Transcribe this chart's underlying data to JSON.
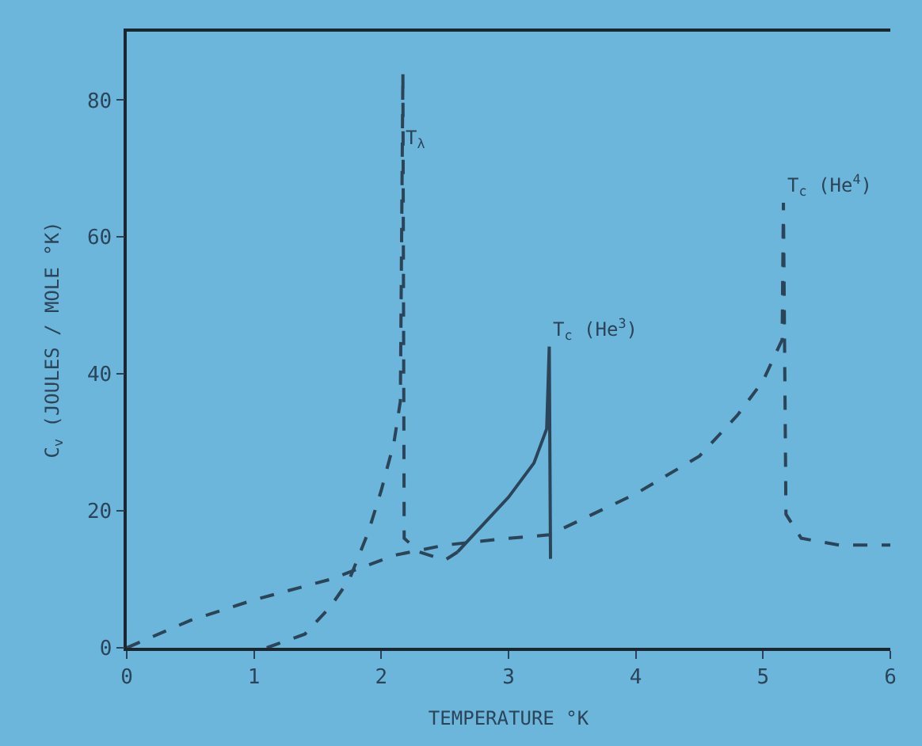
{
  "chart_data": {
    "type": "line",
    "xlabel": "TEMPERATURE °K",
    "ylabel": "C$_{v}$ (JOULES / MOLE °K)",
    "xlim": [
      0,
      6
    ],
    "ylim": [
      0,
      90
    ],
    "xticks": [
      0,
      1,
      2,
      3,
      4,
      5,
      6
    ],
    "yticks": [
      0,
      20,
      40,
      60,
      80
    ],
    "grid": false,
    "marker": "none",
    "series": [
      {
        "color": "#2b4458",
        "line_style": "dashed",
        "x": [
          0,
          0.5,
          1,
          1.6,
          2.1,
          2.5,
          3,
          3.32,
          4,
          4.5,
          4.8,
          5,
          5.15,
          5.16,
          5.18,
          5.3,
          5.6,
          6
        ],
        "values": [
          0,
          4,
          7,
          10,
          13.5,
          15,
          16,
          16.5,
          22.5,
          28,
          34,
          39,
          45,
          65,
          19.5,
          16,
          15,
          15
        ]
      },
      {
        "color": "#2b4458",
        "line_style": "dashed",
        "x": [
          1.1,
          1.4,
          1.6,
          1.75,
          1.9,
          2.0,
          2.1,
          2.15,
          2.17,
          2.18,
          2.3,
          2.5,
          2.6
        ],
        "values": [
          0,
          2,
          6,
          10,
          17,
          23,
          30,
          36,
          84,
          16,
          14,
          12.8,
          14
        ]
      },
      {
        "color": "#2b4458",
        "line_style": "solid",
        "x": [
          2.6,
          2.8,
          3.0,
          3.2,
          3.3,
          3.32,
          3.33
        ],
        "values": [
          14,
          18,
          22,
          27,
          32,
          44,
          13
        ]
      }
    ],
    "annotations": [
      {
        "text": "T$_{λ}$",
        "x": 2.17,
        "y": 72
      },
      {
        "text": "T$_{c}$ (He$^{3}$)",
        "x": 3.32,
        "y": 44
      },
      {
        "text": "T$_{c}$ (He$^{4}$)",
        "x": 5.16,
        "y": 65
      }
    ]
  }
}
